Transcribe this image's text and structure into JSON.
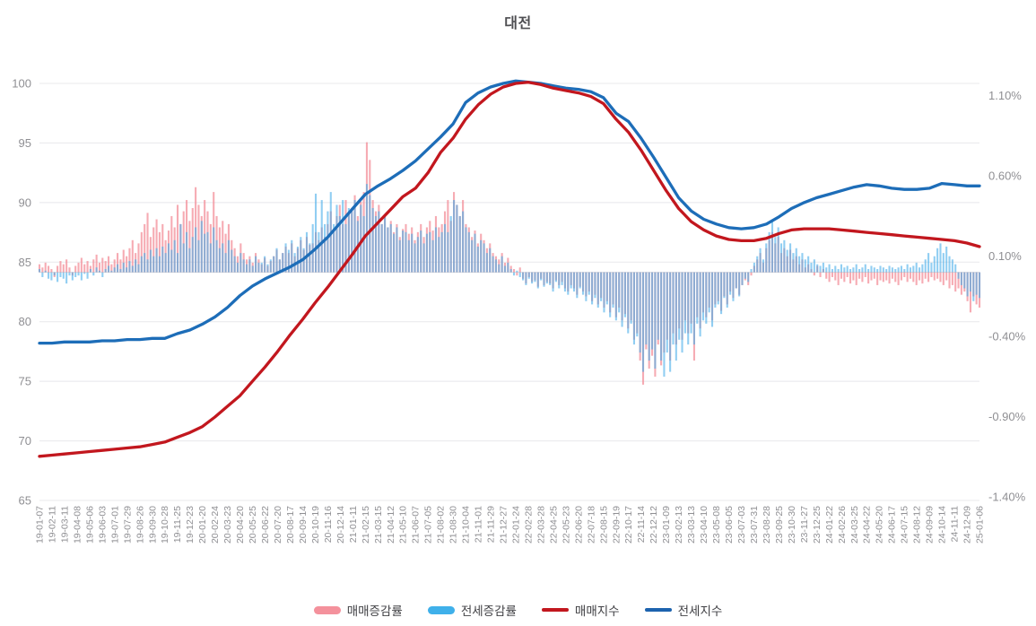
{
  "title": "대전",
  "legend": [
    {
      "label": "매매증감률",
      "type": "bar",
      "color": "#F4919C"
    },
    {
      "label": "전세증감률",
      "type": "bar",
      "color": "#3FB0EA"
    },
    {
      "label": "매매지수",
      "type": "line",
      "color": "#C2171E"
    },
    {
      "label": "전세지수",
      "type": "line",
      "color": "#1D63AE"
    }
  ],
  "colors": {
    "sale_change_bar": "#F28A96",
    "jeonse_change_bar": "#41ABE9",
    "sale_index_line": "#C2171E",
    "jeonse_index_line": "#1D6DB8",
    "grid": "#E8E8EB",
    "zero_line": "#DDDDE0",
    "axis_text": "#8F8F93"
  },
  "chart_data": {
    "type": "bar+line dual-axis, weekly bars with monthly line anchors",
    "title": "대전",
    "left_axis": {
      "ticks": [
        100,
        95,
        90,
        85,
        80,
        75,
        70,
        65
      ],
      "range": [
        65,
        100
      ]
    },
    "right_axis": {
      "tick_labels": [
        "1.10%",
        "0.60%",
        "0.10%",
        "-0.40%",
        "-0.90%",
        "-1.40%"
      ],
      "tick_values": [
        1.1,
        0.6,
        0.1,
        -0.4,
        -0.9,
        -1.4
      ]
    },
    "x_tick_labels": [
      "19-01-07",
      "19-02-11",
      "19-03-11",
      "19-04-08",
      "19-05-06",
      "19-06-03",
      "19-07-01",
      "19-07-29",
      "19-08-26",
      "19-09-30",
      "19-10-28",
      "19-11-25",
      "19-12-23",
      "20-01-20",
      "20-02-24",
      "20-03-23",
      "20-04-20",
      "20-05-25",
      "20-06-22",
      "20-07-20",
      "20-08-17",
      "20-09-14",
      "20-10-19",
      "20-11-16",
      "20-12-14",
      "21-01-11",
      "21-02-15",
      "21-03-15",
      "21-04-12",
      "21-05-10",
      "21-06-07",
      "21-07-05",
      "21-08-02",
      "21-08-30",
      "21-10-04",
      "21-11-01",
      "21-11-29",
      "21-12-27",
      "22-01-24",
      "22-02-28",
      "22-03-28",
      "22-04-25",
      "22-05-23",
      "22-06-20",
      "22-07-18",
      "22-08-15",
      "22-09-19",
      "22-10-17",
      "22-11-14",
      "22-12-12",
      "23-01-09",
      "23-02-13",
      "23-03-13",
      "23-04-10",
      "23-05-08",
      "23-06-05",
      "23-07-03",
      "23-07-31",
      "23-08-28",
      "23-09-25",
      "23-10-30",
      "23-11-27",
      "23-12-25",
      "24-01-22",
      "24-02-26",
      "24-03-25",
      "24-04-22",
      "24-05-20",
      "24-06-17",
      "24-07-15",
      "24-08-12",
      "24-09-09",
      "24-10-14",
      "24-11-11",
      "24-12-09",
      "25-01-06"
    ],
    "series": [
      {
        "name": "매매지수",
        "axis": "left",
        "kind": "line",
        "values": [
          68.7,
          68.8,
          68.9,
          69.0,
          69.1,
          69.2,
          69.3,
          69.4,
          69.5,
          69.7,
          69.9,
          70.3,
          70.7,
          71.2,
          72.0,
          72.9,
          73.8,
          75.0,
          76.2,
          77.5,
          78.9,
          80.2,
          81.6,
          82.9,
          84.3,
          85.7,
          87.2,
          88.3,
          89.4,
          90.5,
          91.2,
          92.5,
          94.2,
          95.4,
          97.0,
          98.2,
          99.1,
          99.7,
          100.0,
          100.1,
          99.9,
          99.6,
          99.4,
          99.2,
          98.9,
          98.3,
          97.0,
          95.9,
          94.4,
          92.7,
          91.0,
          89.5,
          88.4,
          87.7,
          87.2,
          86.9,
          86.8,
          86.8,
          87.0,
          87.4,
          87.7,
          87.8,
          87.8,
          87.8,
          87.7,
          87.6,
          87.5,
          87.4,
          87.3,
          87.2,
          87.1,
          87.0,
          86.9,
          86.8,
          86.6,
          86.3
        ]
      },
      {
        "name": "전세지수",
        "axis": "left",
        "kind": "line",
        "values": [
          78.2,
          78.2,
          78.3,
          78.3,
          78.3,
          78.4,
          78.4,
          78.5,
          78.5,
          78.6,
          78.6,
          79.0,
          79.3,
          79.8,
          80.4,
          81.2,
          82.2,
          83.0,
          83.6,
          84.1,
          84.6,
          85.2,
          86.1,
          87.1,
          88.3,
          89.5,
          90.7,
          91.4,
          92.0,
          92.7,
          93.5,
          94.5,
          95.5,
          96.6,
          98.4,
          99.2,
          99.7,
          100.0,
          100.2,
          100.1,
          100.0,
          99.8,
          99.6,
          99.5,
          99.3,
          98.8,
          97.5,
          96.8,
          95.4,
          93.8,
          92.1,
          90.4,
          89.3,
          88.6,
          88.2,
          87.9,
          87.8,
          87.9,
          88.2,
          88.8,
          89.5,
          90.0,
          90.4,
          90.7,
          91.0,
          91.3,
          91.5,
          91.4,
          91.2,
          91.1,
          91.1,
          91.2,
          91.6,
          91.5,
          91.4,
          91.4
        ]
      },
      {
        "name": "매매증감률",
        "axis": "right",
        "kind": "bar",
        "unit": "%",
        "values": [
          0.05,
          0.03,
          0.06,
          0.04,
          0.02,
          -0.03,
          0.04,
          0.07,
          0.05,
          0.08,
          0.03,
          -0.02,
          0.04,
          0.06,
          0.09,
          0.05,
          0.07,
          0.04,
          0.08,
          0.11,
          0.06,
          0.09,
          0.07,
          0.1,
          0.05,
          0.08,
          0.12,
          0.08,
          0.14,
          0.1,
          0.15,
          0.2,
          0.12,
          0.18,
          0.25,
          0.3,
          0.37,
          0.22,
          0.28,
          0.33,
          0.25,
          0.3,
          0.2,
          0.26,
          0.35,
          0.28,
          0.42,
          0.3,
          0.38,
          0.45,
          0.32,
          0.4,
          0.53,
          0.42,
          0.35,
          0.45,
          0.38,
          0.3,
          0.5,
          0.35,
          0.28,
          0.32,
          0.24,
          0.3,
          0.2,
          0.15,
          0.1,
          0.18,
          0.12,
          0.08,
          0.1,
          0.06,
          0.12,
          0.08,
          0.05,
          0.09,
          0.04,
          0.07,
          0.1,
          0.14,
          0.08,
          0.12,
          0.16,
          0.12,
          0.18,
          0.1,
          0.15,
          0.2,
          0.14,
          0.22,
          0.17,
          0.18,
          0.25,
          0.2,
          0.28,
          0.22,
          0.3,
          0.38,
          0.26,
          0.35,
          0.42,
          0.3,
          0.45,
          0.36,
          0.4,
          0.48,
          0.35,
          0.44,
          0.5,
          0.81,
          0.7,
          0.45,
          0.38,
          0.42,
          0.3,
          0.36,
          0.28,
          0.32,
          0.25,
          0.3,
          0.22,
          0.27,
          0.3,
          0.24,
          0.28,
          0.2,
          0.25,
          0.3,
          0.22,
          0.28,
          0.32,
          0.26,
          0.35,
          0.28,
          0.3,
          0.38,
          0.45,
          0.32,
          0.5,
          0.42,
          0.35,
          0.45,
          0.3,
          0.28,
          0.22,
          0.26,
          0.18,
          0.24,
          0.2,
          0.15,
          0.18,
          0.12,
          0.1,
          0.08,
          0.12,
          0.06,
          0.09,
          0.04,
          0.02,
          -0.02,
          0.03,
          -0.04,
          -0.07,
          -0.03,
          -0.06,
          -0.05,
          -0.09,
          -0.04,
          -0.08,
          -0.06,
          -0.07,
          -0.1,
          -0.05,
          -0.08,
          -0.06,
          -0.1,
          -0.12,
          -0.08,
          -0.1,
          -0.14,
          -0.09,
          -0.12,
          -0.15,
          -0.12,
          -0.18,
          -0.14,
          -0.2,
          -0.16,
          -0.22,
          -0.18,
          -0.25,
          -0.2,
          -0.28,
          -0.22,
          -0.3,
          -0.26,
          -0.35,
          -0.3,
          -0.42,
          -0.38,
          -0.55,
          -0.7,
          -0.48,
          -0.6,
          -0.52,
          -0.65,
          -0.45,
          -0.58,
          -0.5,
          -0.42,
          -0.55,
          -0.38,
          -0.45,
          -0.35,
          -0.42,
          -0.3,
          -0.38,
          -0.32,
          -0.55,
          -0.28,
          -0.35,
          -0.25,
          -0.28,
          -0.22,
          -0.3,
          -0.2,
          -0.18,
          -0.24,
          -0.15,
          -0.2,
          -0.12,
          -0.16,
          -0.1,
          -0.14,
          -0.08,
          -0.05,
          -0.08,
          -0.02,
          0.04,
          0.08,
          0.12,
          0.06,
          0.15,
          0.2,
          0.25,
          0.18,
          0.22,
          0.12,
          0.15,
          0.1,
          0.14,
          0.08,
          0.1,
          0.05,
          0.08,
          0.03,
          0.05,
          0.02,
          -0.02,
          0.04,
          -0.03,
          0.02,
          -0.04,
          -0.06,
          -0.03,
          -0.05,
          -0.08,
          -0.04,
          -0.06,
          -0.03,
          -0.07,
          -0.05,
          -0.08,
          -0.04,
          -0.06,
          -0.03,
          -0.07,
          -0.05,
          -0.04,
          -0.08,
          -0.05,
          -0.06,
          -0.05,
          -0.07,
          -0.04,
          -0.06,
          -0.08,
          -0.05,
          -0.03,
          -0.06,
          -0.04,
          -0.06,
          -0.08,
          -0.05,
          -0.07,
          -0.04,
          -0.06,
          -0.03,
          -0.05,
          -0.04,
          -0.06,
          -0.08,
          -0.05,
          -0.1,
          -0.08,
          -0.12,
          -0.1,
          -0.14,
          -0.12,
          -0.18,
          -0.25,
          -0.15,
          -0.2,
          -0.22
        ]
      },
      {
        "name": "전세증감률",
        "axis": "right",
        "kind": "bar",
        "unit": "%",
        "values": [
          0.02,
          -0.03,
          0.01,
          -0.04,
          -0.05,
          -0.02,
          -0.06,
          -0.03,
          -0.04,
          -0.07,
          -0.02,
          -0.05,
          -0.03,
          -0.02,
          -0.05,
          -0.01,
          -0.04,
          0.02,
          -0.02,
          0.03,
          0.01,
          -0.03,
          0.02,
          0.04,
          0.01,
          0.03,
          0.05,
          0.02,
          0.06,
          0.03,
          0.07,
          0.04,
          0.08,
          0.05,
          0.1,
          0.12,
          0.08,
          0.14,
          0.1,
          0.15,
          0.1,
          0.16,
          0.12,
          0.18,
          0.14,
          0.2,
          0.12,
          0.3,
          0.18,
          0.25,
          0.15,
          0.22,
          0.28,
          0.2,
          0.32,
          0.24,
          0.25,
          0.18,
          0.28,
          0.2,
          0.15,
          0.18,
          0.12,
          0.2,
          0.14,
          0.1,
          0.06,
          0.12,
          0.08,
          0.05,
          0.08,
          0.04,
          0.1,
          0.06,
          0.06,
          0.1,
          0.05,
          0.08,
          0.1,
          0.15,
          0.08,
          0.12,
          0.18,
          0.14,
          0.2,
          0.12,
          0.16,
          0.22,
          0.15,
          0.25,
          0.18,
          0.3,
          0.49,
          0.25,
          0.45,
          0.3,
          0.38,
          0.5,
          0.3,
          0.42,
          0.35,
          0.45,
          0.3,
          0.4,
          0.38,
          0.45,
          0.32,
          0.42,
          0.35,
          0.55,
          0.48,
          0.4,
          0.35,
          0.38,
          0.3,
          0.35,
          0.28,
          0.3,
          0.24,
          0.28,
          0.2,
          0.26,
          0.25,
          0.2,
          0.24,
          0.18,
          0.22,
          0.26,
          0.18,
          0.24,
          0.25,
          0.2,
          0.28,
          0.22,
          0.25,
          0.3,
          0.25,
          0.35,
          0.45,
          0.42,
          0.35,
          0.38,
          0.28,
          0.25,
          0.2,
          0.24,
          0.16,
          0.2,
          0.18,
          0.12,
          0.15,
          0.1,
          0.08,
          0.05,
          0.1,
          0.04,
          0.06,
          0.02,
          -0.02,
          0.01,
          -0.03,
          -0.05,
          -0.08,
          -0.04,
          -0.07,
          -0.06,
          -0.1,
          -0.05,
          -0.09,
          -0.07,
          -0.08,
          -0.12,
          -0.06,
          -0.1,
          -0.08,
          -0.12,
          -0.14,
          -0.1,
          -0.12,
          -0.16,
          -0.1,
          -0.14,
          -0.18,
          -0.14,
          -0.2,
          -0.16,
          -0.22,
          -0.18,
          -0.25,
          -0.2,
          -0.28,
          -0.22,
          -0.3,
          -0.25,
          -0.34,
          -0.28,
          -0.38,
          -0.32,
          -0.45,
          -0.4,
          -0.5,
          -0.62,
          -0.45,
          -0.55,
          -0.48,
          -0.6,
          -0.42,
          -0.55,
          -0.65,
          -0.5,
          -0.62,
          -0.45,
          -0.55,
          -0.42,
          -0.5,
          -0.38,
          -0.45,
          -0.38,
          -0.45,
          -0.32,
          -0.4,
          -0.3,
          -0.32,
          -0.25,
          -0.34,
          -0.22,
          -0.2,
          -0.26,
          -0.16,
          -0.22,
          -0.14,
          -0.18,
          -0.1,
          -0.15,
          -0.08,
          -0.04,
          -0.06,
          0.02,
          0.06,
          0.1,
          0.15,
          0.08,
          0.18,
          0.25,
          0.33,
          0.22,
          0.28,
          0.18,
          0.2,
          0.14,
          0.18,
          0.12,
          0.15,
          0.1,
          0.12,
          0.08,
          0.1,
          0.06,
          0.08,
          0.05,
          0.04,
          0.06,
          0.03,
          0.05,
          0.02,
          0.04,
          0.02,
          0.05,
          0.03,
          0.04,
          0.02,
          0.03,
          0.05,
          0.02,
          0.03,
          0.05,
          0.02,
          0.04,
          0.03,
          0.02,
          0.04,
          0.03,
          0.02,
          0.04,
          0.03,
          0.02,
          0.03,
          0.04,
          0.02,
          0.05,
          0.03,
          0.04,
          0.06,
          0.03,
          0.05,
          0.08,
          0.12,
          0.06,
          0.1,
          0.15,
          0.18,
          0.12,
          0.16,
          0.1,
          0.08,
          0.05,
          -0.04,
          -0.08,
          -0.1,
          -0.15,
          -0.12,
          -0.18,
          -0.14,
          -0.16
        ]
      }
    ]
  }
}
